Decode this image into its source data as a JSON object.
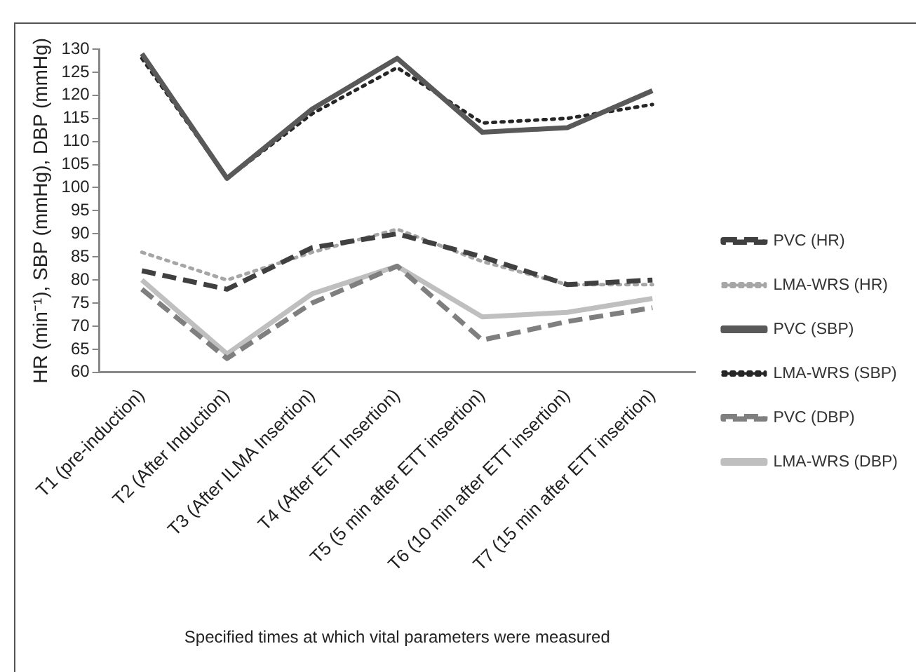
{
  "chart_data": {
    "type": "line",
    "ylabel": "HR (min⁻¹), SBP (mmHg), DBP (mmHg)",
    "xlabel": "Specified times at which vital parameters were measured",
    "categories": [
      "T1 (pre-induction)",
      "T2 (After Induction)",
      "T3 (After ILMA Insertion)",
      "T4 (After ETT Insertion)",
      "T5 (5 min after ETT insertion)",
      "T6 (10 min after ETT insertion)",
      "T7 (15 min after ETT insertion)"
    ],
    "series": [
      {
        "name": "PVC (HR)",
        "color": "#404040",
        "line_style": "dashed",
        "values": [
          82,
          78,
          87,
          90,
          85,
          79,
          80
        ]
      },
      {
        "name": "LMA-WRS (HR)",
        "color": "#a6a6a6",
        "line_style": "dotted",
        "values": [
          86,
          80,
          86,
          91,
          84,
          79,
          79
        ]
      },
      {
        "name": "PVC (SBP)",
        "color": "#595959",
        "line_style": "solid",
        "values": [
          129,
          102,
          117,
          128,
          112,
          113,
          121
        ]
      },
      {
        "name": "LMA-WRS (SBP)",
        "color": "#262626",
        "line_style": "dotted",
        "values": [
          128,
          102,
          116,
          126,
          114,
          115,
          118
        ]
      },
      {
        "name": "PVC (DBP)",
        "color": "#7f7f7f",
        "line_style": "dashed",
        "values": [
          78,
          63,
          75,
          83,
          67,
          71,
          74
        ]
      },
      {
        "name": "LMA-WRS (DBP)",
        "color": "#bfbfbf",
        "line_style": "solid",
        "values": [
          80,
          64,
          77,
          83,
          72,
          73,
          76
        ]
      }
    ],
    "ylim": [
      60,
      130
    ],
    "yticks": [
      60,
      65,
      70,
      75,
      80,
      85,
      90,
      95,
      100,
      105,
      110,
      115,
      120,
      125,
      130
    ],
    "grid": false,
    "legend": "right",
    "marker": "none"
  }
}
